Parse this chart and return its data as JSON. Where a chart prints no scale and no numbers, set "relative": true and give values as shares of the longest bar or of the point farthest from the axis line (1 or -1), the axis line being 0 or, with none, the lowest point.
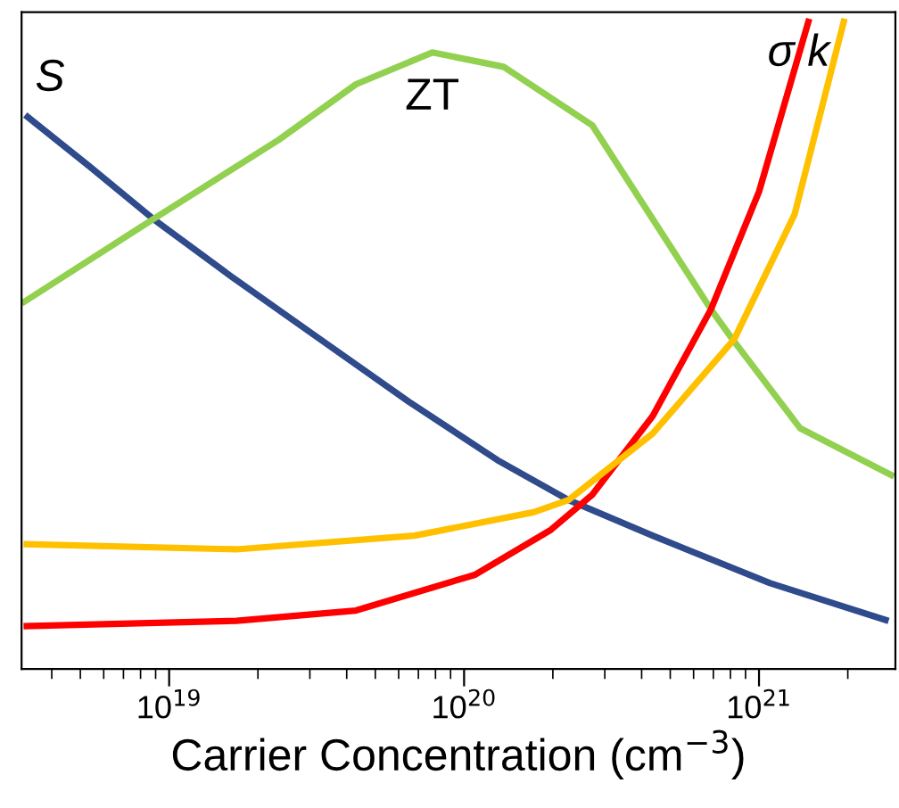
{
  "chart_data": {
    "type": "line",
    "relative": true,
    "log": "x",
    "xlabel": "Carrier Concentration (cm$^{−3}$)",
    "xlim": [
      3.16e+18,
      2.9e+21
    ],
    "xticks": [
      {
        "value": 1e+19,
        "label": "10$^{19}$"
      },
      {
        "value": 1e+20,
        "label": "10$^{20}$"
      },
      {
        "value": 1e+21,
        "label": "10$^{21}$"
      }
    ],
    "tick_labels": "x",
    "grid": false,
    "marker": "none",
    "line_style": "solid",
    "series": [
      {
        "name": "S",
        "color": "#2f4b8c",
        "x": [
          3.25e+18,
          5.36e+18,
          8.95e+18,
          1.63e+19,
          3.25e+19,
          6.5e+19,
          1.3e+20,
          2.26e+20,
          4.36e+20,
          1.09e+21,
          2.75e+21
        ],
        "values": [
          0.852,
          0.773,
          0.69,
          0.603,
          0.507,
          0.411,
          0.321,
          0.26,
          0.205,
          0.132,
          0.074
        ]
      },
      {
        "name": "ZT",
        "color": "#92d050",
        "x": [
          3.16e+18,
          8.71e+18,
          2.36e+19,
          4.3e+19,
          7.8e+19,
          1.36e+20,
          2.72e+20,
          6.87e+20,
          8.13e+20,
          1.38e+21,
          2.87e+21
        ],
        "values": [
          0.562,
          0.69,
          0.814,
          0.899,
          0.948,
          0.926,
          0.836,
          0.553,
          0.507,
          0.37,
          0.296
        ]
      },
      {
        "name": "σ",
        "color": "#ff0000",
        "x": [
          3.21e+18,
          1.69e+19,
          4.3e+19,
          1.09e+20,
          1.97e+20,
          2.72e+20,
          4.36e+20,
          6.87e+20,
          1e+21,
          1.48e+21
        ],
        "values": [
          0.066,
          0.074,
          0.09,
          0.145,
          0.214,
          0.268,
          0.389,
          0.553,
          0.734,
          1.0
        ]
      },
      {
        "name": "k",
        "color": "#ffc000",
        "x": [
          3.21e+18,
          1.69e+19,
          6.78e+19,
          1.72e+20,
          2.26e+20,
          4.36e+20,
          8.24e+20,
          1.32e+21,
          1.95e+21
        ],
        "values": [
          0.192,
          0.184,
          0.205,
          0.241,
          0.26,
          0.362,
          0.507,
          0.699,
          1.0
        ]
      }
    ]
  }
}
